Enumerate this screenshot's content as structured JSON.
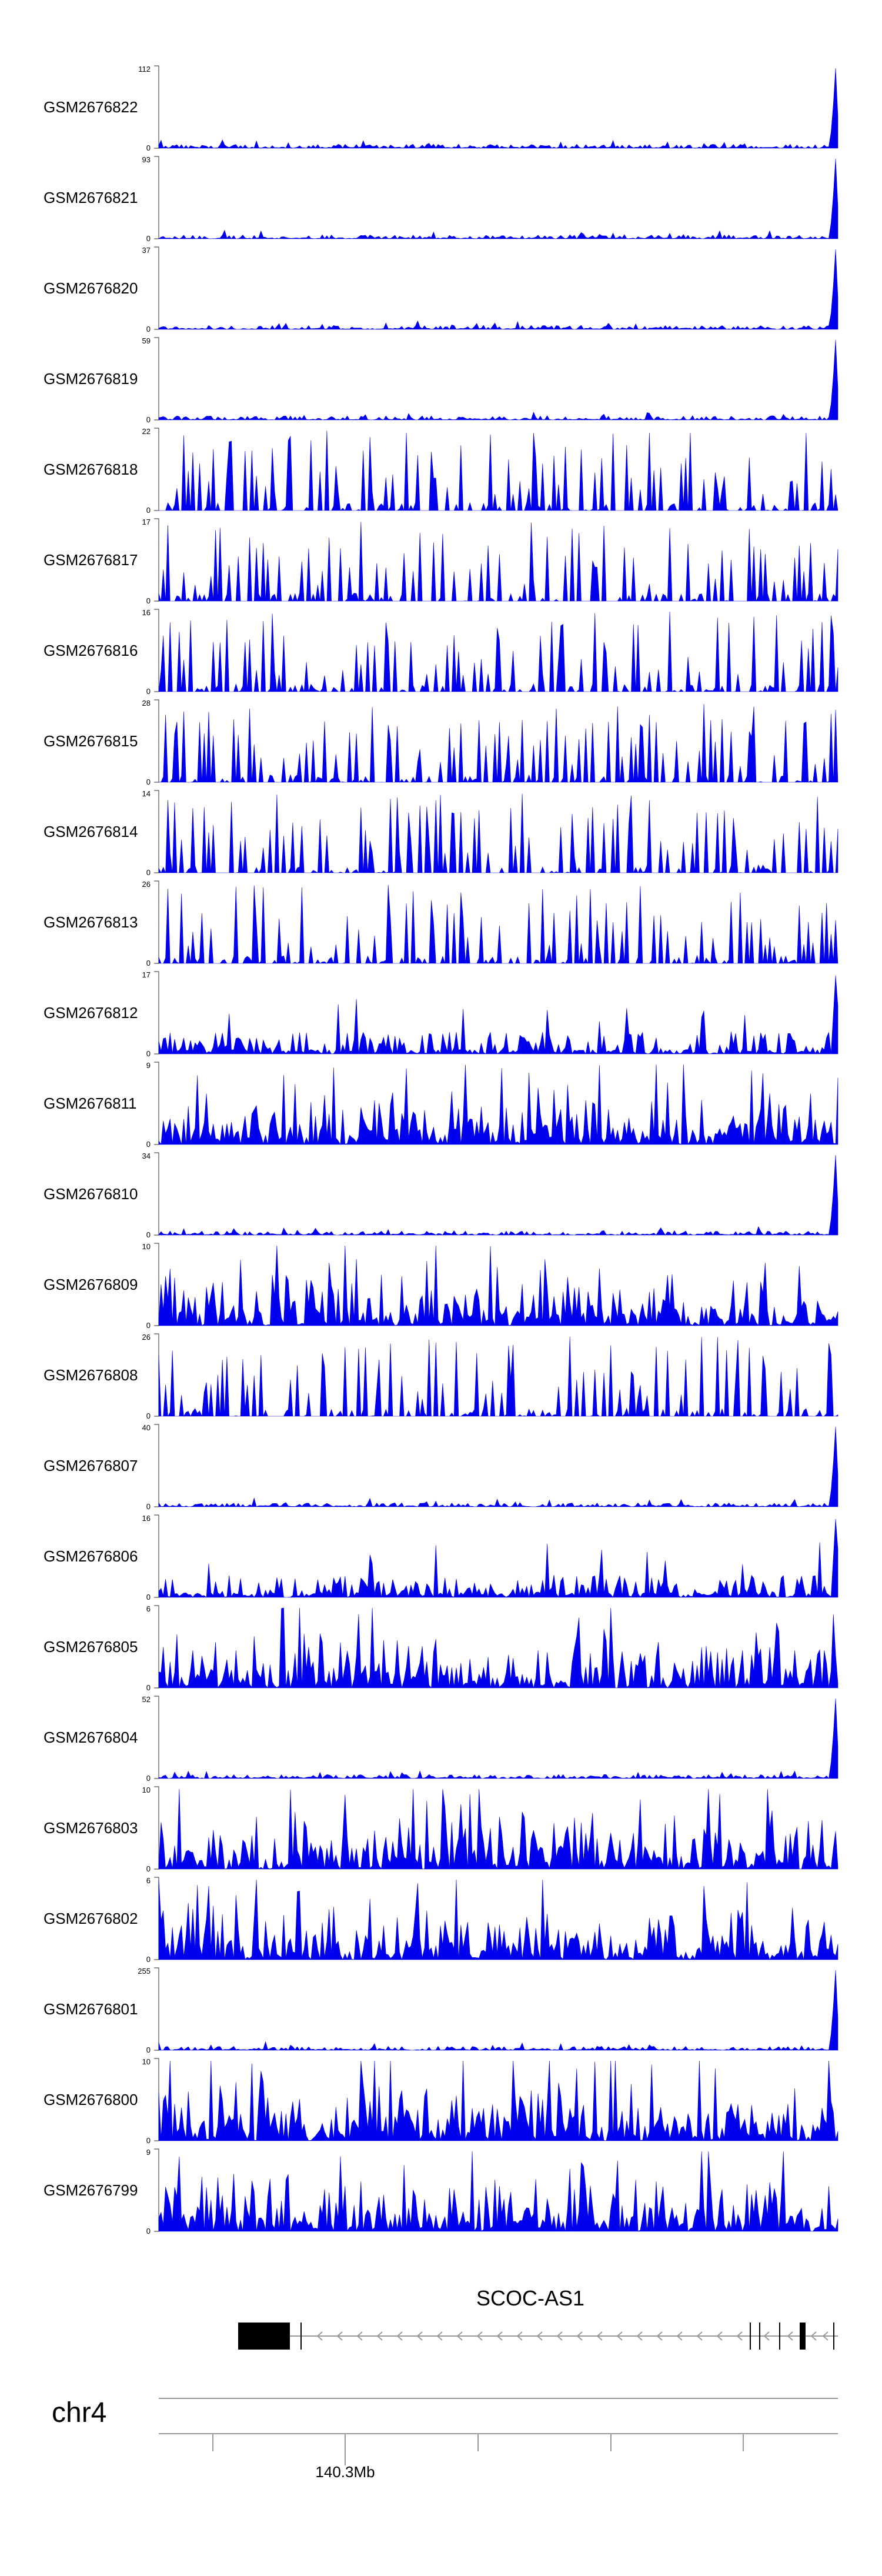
{
  "chart_data": {
    "type": "area",
    "color": "#0000EE",
    "tracks": [
      {
        "name": "GSM2676822",
        "ymax": "112",
        "ymin": "0",
        "profile": "peak"
      },
      {
        "name": "GSM2676821",
        "ymax": "93",
        "ymin": "0",
        "profile": "peak"
      },
      {
        "name": "GSM2676820",
        "ymax": "37",
        "ymin": "0",
        "profile": "peak"
      },
      {
        "name": "GSM2676819",
        "ymax": "59",
        "ymin": "0",
        "profile": "peak"
      },
      {
        "name": "GSM2676818",
        "ymax": "22",
        "ymin": "0",
        "profile": "sparse"
      },
      {
        "name": "GSM2676817",
        "ymax": "17",
        "ymin": "0",
        "profile": "sparse"
      },
      {
        "name": "GSM2676816",
        "ymax": "16",
        "ymin": "0",
        "profile": "sparse"
      },
      {
        "name": "GSM2676815",
        "ymax": "28",
        "ymin": "0",
        "profile": "sparse"
      },
      {
        "name": "GSM2676814",
        "ymax": "14",
        "ymin": "0",
        "profile": "sparse"
      },
      {
        "name": "GSM2676813",
        "ymax": "26",
        "ymin": "0",
        "profile": "sparse"
      },
      {
        "name": "GSM2676812",
        "ymax": "17",
        "ymin": "0",
        "profile": "lowpeak"
      },
      {
        "name": "GSM2676811",
        "ymax": "9",
        "ymin": "0",
        "profile": "dense"
      },
      {
        "name": "GSM2676810",
        "ymax": "34",
        "ymin": "0",
        "profile": "peak"
      },
      {
        "name": "GSM2676809",
        "ymax": "10",
        "ymin": "0",
        "profile": "dense"
      },
      {
        "name": "GSM2676808",
        "ymax": "26",
        "ymin": "0",
        "profile": "sparse"
      },
      {
        "name": "GSM2676807",
        "ymax": "40",
        "ymin": "0",
        "profile": "peak"
      },
      {
        "name": "GSM2676806",
        "ymax": "16",
        "ymin": "0",
        "profile": "lowpeak"
      },
      {
        "name": "GSM2676805",
        "ymax": "6",
        "ymin": "0",
        "profile": "dense"
      },
      {
        "name": "GSM2676804",
        "ymax": "52",
        "ymin": "0",
        "profile": "peak"
      },
      {
        "name": "GSM2676803",
        "ymax": "10",
        "ymin": "0",
        "profile": "dense"
      },
      {
        "name": "GSM2676802",
        "ymax": "6",
        "ymin": "0",
        "profile": "dense"
      },
      {
        "name": "GSM2676801",
        "ymax": "255",
        "ymin": "0",
        "profile": "peak"
      },
      {
        "name": "GSM2676800",
        "ymax": "10",
        "ymin": "0",
        "profile": "dense"
      },
      {
        "name": "GSM2676799",
        "ymax": "9",
        "ymin": "0",
        "profile": "dense"
      }
    ],
    "gene": {
      "name": "SCOC-AS1",
      "strand": "-"
    },
    "chromosome": "chr4",
    "axis": {
      "tick_label": "140.3Mb"
    }
  }
}
